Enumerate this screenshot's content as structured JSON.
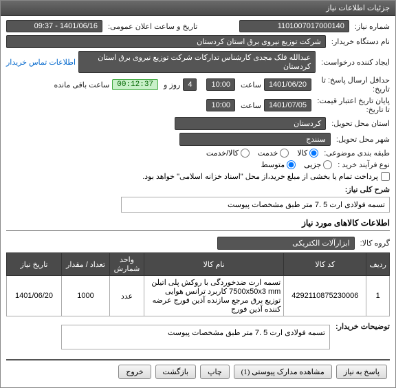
{
  "title": "جزئیات اطلاعات نیاز",
  "labels": {
    "need_no": "شماره نیاز:",
    "pub_dt": "تاریخ و ساعت اعلان عمومی:",
    "buyer_org": "نام دستگاه خریدار:",
    "requester": "ایجاد کننده درخواست:",
    "contact": "اطلاعات تماس خریدار",
    "deadline": "حداقل ارسال پاسخ: تا تاریخ:",
    "time_word": "ساعت",
    "days_and": "روز و",
    "remaining": "ساعت باقی مانده",
    "validity": "پایان تاریخ اعتبار قیمت: تا تاریخ:",
    "province": "استان محل تحویل:",
    "city": "شهر محل تحویل:",
    "subject_cat": "طبقه بندی موضوعی:",
    "proc_type": "نوع فرآیند خرید :",
    "pay_note": "پرداخت تمام یا بخشی از مبلغ خرید،از محل \"اسناد خزانه اسلامی\" خواهد بود.",
    "short_desc": "شرح کلی نیاز:",
    "section_items": "اطلاعات کالاهای مورد نیاز",
    "goods_group": "گروه کالا:",
    "buyer_notes": "توضیحات خریدار:",
    "tbl_row": "ردیف",
    "tbl_code": "کد کالا",
    "tbl_name": "نام کالا",
    "tbl_unit": "واحد شمارش",
    "tbl_qty": "تعداد / مقدار",
    "tbl_date": "تاریخ نیاز"
  },
  "fields": {
    "need_no": "1101007017000140",
    "pub_dt": "1401/06/16 - 09:37",
    "buyer_org": "شرکت توزیع نیروی برق استان کردستان",
    "requester": "عبدالله فلک مجدی کارشناس تدارکات شرکت توزیع نیروی برق استان کردستان",
    "deadline_date": "1401/06/20",
    "deadline_time": "10:00",
    "remaining_days": "4",
    "remaining_timer": "00:12:37",
    "validity_date": "1401/07/05",
    "validity_time": "10:00",
    "province": "کردستان",
    "city": "سنندج",
    "goods_group": "ابزارآلات الکتریکی",
    "short_desc": "تسمه فولادی ارت 5 .7 متر  طبق مشخصات پیوست",
    "buyer_notes": "تسمه فولادی ارت 5 .7 متر  طبق مشخصات پیوست"
  },
  "subject_cat": {
    "options": [
      "کالا",
      "خدمت",
      "کالا/خدمت"
    ],
    "selected": 0
  },
  "proc_type": {
    "options": [
      "جزیی",
      "متوسط"
    ],
    "selected": 1
  },
  "pay_checked": false,
  "table_rows": [
    {
      "idx": "1",
      "code": "4292110875230006",
      "name": "تسمه ارت ضدخوردگی با روکش پلی اتیلن 7500x50x3 mm کاربرد ترانس هوایی توزیع برق مرجع سازنده آذین فورج عرضه کننده آذین فورج",
      "unit": "عدد",
      "qty": "1000",
      "date": "1401/06/20"
    }
  ],
  "buttons": {
    "reply": "پاسخ به نیاز",
    "attach": "مشاهده مدارک پیوستی (1)",
    "print": "چاپ",
    "back": "بازگشت",
    "exit": "خروج"
  }
}
